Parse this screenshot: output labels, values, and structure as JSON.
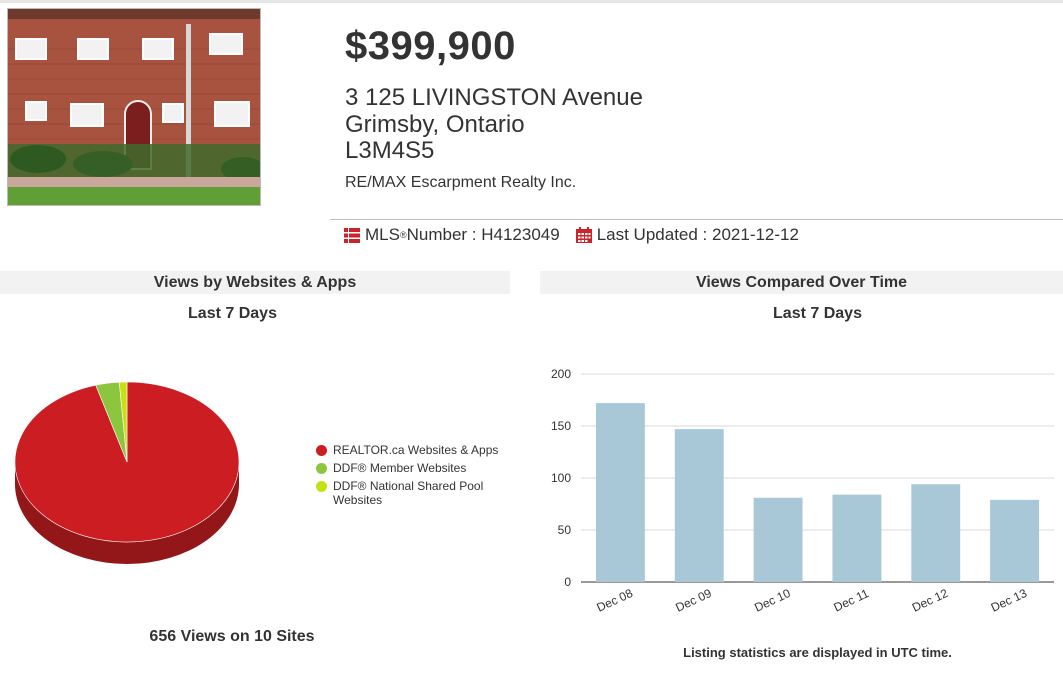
{
  "listing": {
    "price": "$399,900",
    "address_line1": "3 125 LIVINGSTON Avenue",
    "address_line2": "Grimsby, Ontario",
    "postal_code": "L3M4S5",
    "brokerage": "RE/MAX Escarpment Realty Inc.",
    "mls_label": "MLS",
    "mls_reg": "®",
    "mls_suffix": " Number : H4123049",
    "updated_text": "Last Updated : 2021-12-12"
  },
  "icons": {
    "mls": "list-icon",
    "updated": "calendar-icon",
    "color": "#cc2229"
  },
  "panels": {
    "websites": {
      "title": "Views by Websites & Apps",
      "subtitle": "Last 7 Days",
      "total": "656 Views on 10 Sites"
    },
    "time": {
      "title": "Views Compared Over Time",
      "subtitle": "Last 7 Days",
      "footnote": "Listing statistics are displayed in UTC time."
    }
  },
  "chart_data": [
    {
      "type": "pie",
      "labels": [
        "REALTOR.ca Websites & Apps",
        "DDF® Member Websites",
        "DDF® National Shared Pool Websites"
      ],
      "values": [
        95.5,
        3.4,
        1.1
      ],
      "colors": [
        "#cc1e22",
        "#8cc63f",
        "#c6e012"
      ],
      "legend": "right"
    },
    {
      "type": "bar",
      "categories": [
        "Dec 08",
        "Dec 09",
        "Dec 10",
        "Dec 11",
        "Dec 12",
        "Dec 13"
      ],
      "values": [
        172,
        147,
        81,
        84,
        94,
        79
      ],
      "ylim": [
        0,
        200
      ],
      "yticks": [
        0,
        50,
        100,
        150,
        200
      ],
      "color": "#a9c8d7",
      "grid": true
    }
  ]
}
